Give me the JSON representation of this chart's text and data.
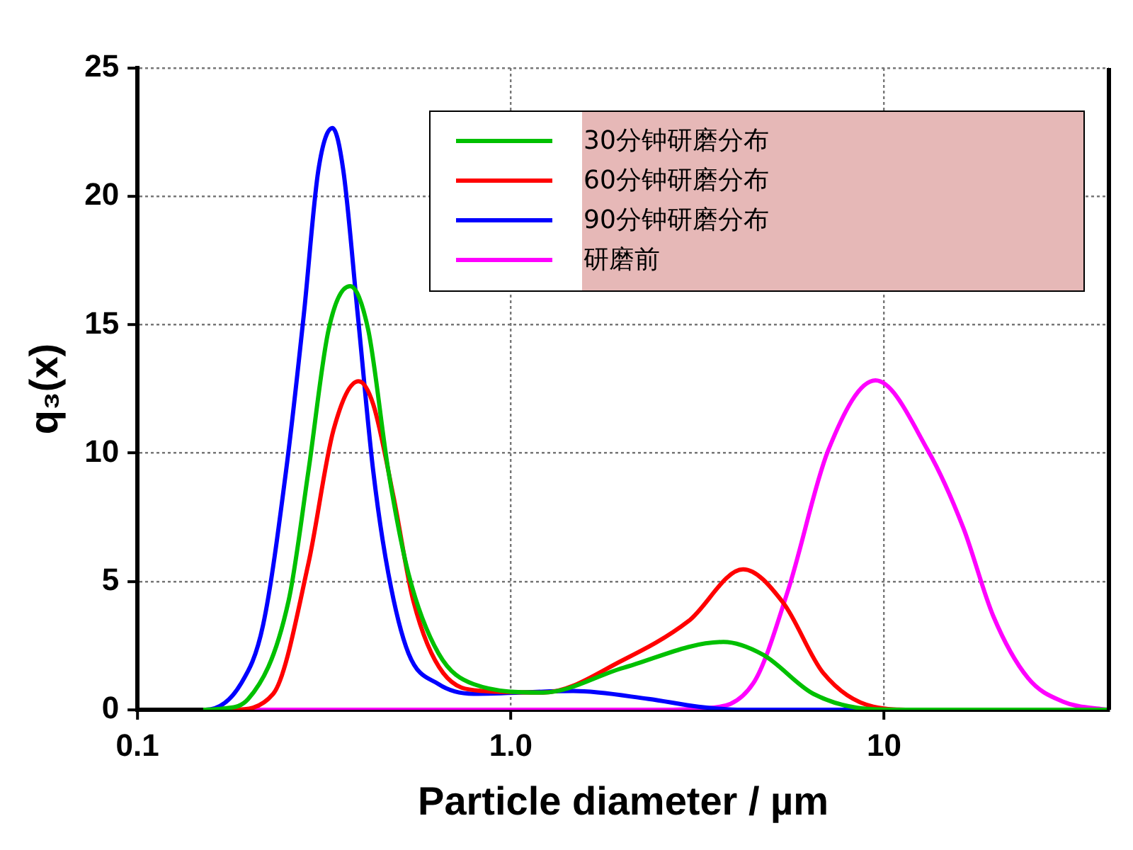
{
  "chart_data": {
    "type": "line",
    "xlabel": "Particle diameter / µm",
    "ylabel": "q₃(x)",
    "log": "x",
    "grid": true,
    "legend": "top right",
    "marker": "none",
    "line_style": "solid",
    "xlim": [
      0.1,
      40
    ],
    "xticks": [
      0.1,
      {
        "value": 1,
        "label": "1.0"
      },
      10
    ],
    "ylim": [
      0,
      25
    ],
    "yticks": [
      0,
      5,
      10,
      15,
      20,
      25
    ],
    "series": [
      {
        "name": "30分钟研磨分布",
        "color": "#00c000",
        "x": [
          0.15,
          0.17,
          0.198,
          0.254,
          0.287,
          0.325,
          0.371,
          0.415,
          0.47,
          0.532,
          0.64,
          0.794,
          1.22,
          2.0,
          3.71,
          4.74,
          6.46,
          9.35,
          12,
          16,
          40
        ],
        "values": [
          0,
          0.05,
          0.42,
          4.25,
          9.3,
          14.8,
          16.5,
          14.8,
          9.3,
          5.3,
          2.2,
          1.0,
          0.67,
          1.63,
          2.64,
          2.14,
          0.62,
          0.02,
          0,
          0,
          0
        ]
      },
      {
        "name": "60分钟研磨分布",
        "color": "#ff0000",
        "x": [
          0.15,
          0.18,
          0.231,
          0.287,
          0.335,
          0.391,
          0.428,
          0.485,
          0.548,
          0.659,
          0.845,
          1.22,
          2.0,
          2.99,
          4.19,
          5.37,
          6.87,
          9.35,
          12,
          40
        ],
        "values": [
          0,
          0,
          0.62,
          5.7,
          10.9,
          12.8,
          11.9,
          8.3,
          4.25,
          1.43,
          0.73,
          0.67,
          1.94,
          3.45,
          5.47,
          4.16,
          1.43,
          0.12,
          0,
          0
        ]
      },
      {
        "name": "90分钟研磨分布",
        "color": "#0000ff",
        "x": [
          0.15,
          0.152,
          0.189,
          0.217,
          0.25,
          0.279,
          0.305,
          0.333,
          0.356,
          0.389,
          0.428,
          0.47,
          0.532,
          0.64,
          0.794,
          1.47,
          2.34,
          3.18,
          4.19,
          40
        ],
        "values": [
          0,
          0,
          1.0,
          3.3,
          9.3,
          15.4,
          21,
          22.66,
          21,
          15.4,
          9.3,
          5.3,
          2.2,
          1.0,
          0.62,
          0.73,
          0.42,
          0.12,
          0,
          0
        ]
      },
      {
        "name": "研磨前",
        "color": "#ff00ff",
        "x": [
          0.15,
          1,
          2.5,
          3.27,
          4.46,
          5.53,
          7.08,
          9.48,
          13.1,
          16.3,
          19.6,
          24.3,
          30.1,
          38.5,
          40
        ],
        "values": [
          0,
          0,
          0,
          0.05,
          1.03,
          4.66,
          10.1,
          12.83,
          10.1,
          7.08,
          3.65,
          1.23,
          0.32,
          0.02,
          0
        ]
      }
    ]
  }
}
